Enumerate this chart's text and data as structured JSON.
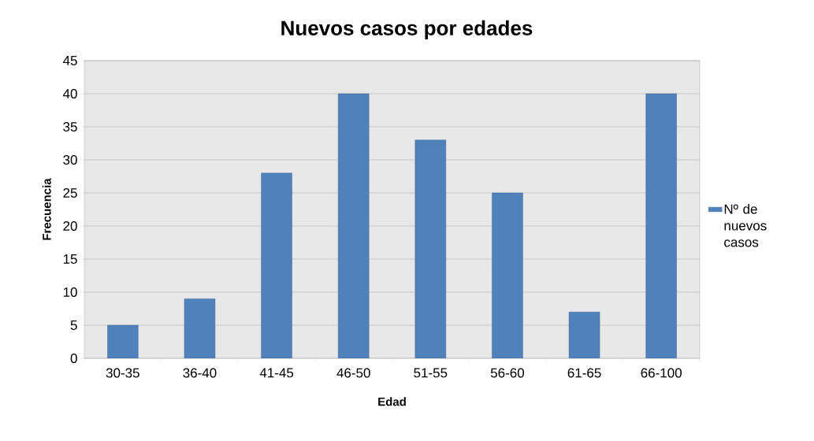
{
  "chart_data": {
    "type": "bar",
    "title": "Nuevos casos por edades",
    "xlabel": "Edad",
    "ylabel": "Frecuencia",
    "categories": [
      "30-35",
      "36-40",
      "41-45",
      "46-50",
      "51-55",
      "56-60",
      "61-65",
      "66-100"
    ],
    "series": [
      {
        "name": "Nº de nuevos casos",
        "color": "#4f81bd",
        "values": [
          5,
          9,
          28,
          40,
          33,
          25,
          7,
          40
        ]
      }
    ],
    "ylim": [
      0,
      45
    ],
    "yticks": [
      0,
      5,
      10,
      15,
      20,
      25,
      30,
      35,
      40,
      45
    ],
    "grid": "y",
    "legend": "right"
  }
}
